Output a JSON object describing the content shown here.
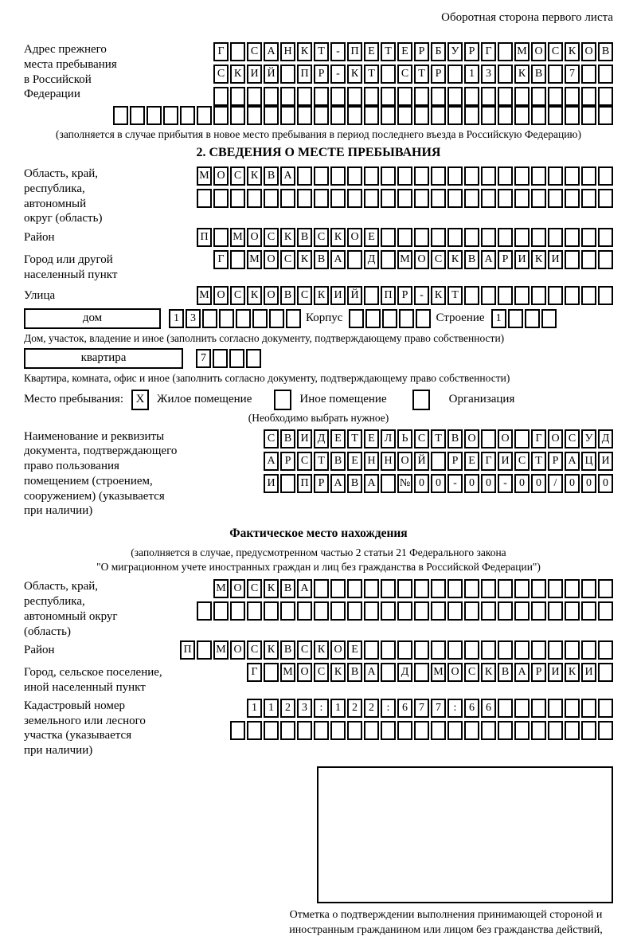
{
  "page": {
    "header_note": "Оборотная сторона первого листа"
  },
  "colors": {
    "ink": "#000000",
    "paper": "#ffffff"
  },
  "prev_address": {
    "label": "Адрес прежнего\nместа пребывания\nв Российской\nФедерации",
    "rows": [
      {
        "cells": "Г САНКТ-ПЕТЕРБУРГ МОСКОВ",
        "count": 24
      },
      {
        "cells": "СКИЙ ПР-КТ СТР 13 КВ 7",
        "count": 24
      },
      {
        "cells": "",
        "count": 24
      }
    ],
    "overflow_row": {
      "cells": "",
      "count": 30
    },
    "note": "(заполняется в случае прибытия в новое место пребывания в период последнего въезда в Российскую Федерацию)"
  },
  "section2": {
    "title": "2. СВЕДЕНИЯ О МЕСТЕ ПРЕБЫВАНИЯ",
    "oblast": {
      "label": "Область, край,\nреспублика,\nавтономный\nокруг (область)",
      "rows": [
        {
          "cells": "МОСКВА",
          "count": 25
        },
        {
          "cells": "",
          "count": 25
        }
      ]
    },
    "raion": {
      "label": "Район",
      "row": {
        "cells": "П МОСКВСКОЕ",
        "count": 25
      }
    },
    "gorod": {
      "label": "Город или другой\nнаселенный пункт",
      "row": {
        "cells": "Г МОСКВА Д МОСКВАРИКИ",
        "count": 24
      }
    },
    "ulitsa": {
      "label": "Улица",
      "row": {
        "cells": "МОСКОВСКИЙ ПР-КТ",
        "count": 25
      }
    },
    "dom": {
      "box_label": "дом",
      "row": {
        "cells": "13",
        "count": 8
      },
      "korpus_label": "Корпус",
      "korpus_row": {
        "cells": "",
        "count": 5
      },
      "stroenie_label": "Строение",
      "stroenie_row": {
        "cells": "1",
        "count": 4
      },
      "note": "Дом, участок, владение и иное (заполнить согласно документу, подтверждающему право собственности)"
    },
    "kvartira": {
      "box_label": "квартира",
      "row": {
        "cells": "7",
        "count": 4
      },
      "note": "Квартира, комната, офис и иное (заполнить согласно документу, подтверждающему право собственности)"
    },
    "mesto": {
      "label": "Место пребывания:",
      "zhiloe_mark": "X",
      "zhiloe_label": "Жилое помещение",
      "inoe_mark": "",
      "inoe_label": "Иное помещение",
      "org_mark": "",
      "org_label": "Организация",
      "note": "(Необходимо выбрать нужное)"
    },
    "doc": {
      "label": "Наименование и реквизиты\nдокумента, подтверждающего\nправо пользования\nпомещением (строением,\nсооружением) (указывается\nпри наличии)",
      "rows": [
        {
          "cells": "СВИДЕТЕЛЬСТВО О ГОСУД",
          "count": 21
        },
        {
          "cells": "АРСТВЕННОЙ РЕГИСТРАЦИ",
          "count": 21
        },
        {
          "cells": "И ПРАВА №00-00-00/000",
          "count": 21
        }
      ]
    }
  },
  "fakt": {
    "title": "Фактическое место нахождения",
    "note_line1": "(заполняется в случае, предусмотренном частью 2 статьи 21 Федерального закона",
    "note_line2": "\"О миграционном учете иностранных граждан и лиц без гражданства в Российской Федерации\")",
    "oblast": {
      "label": "Область, край,\nреспублика,\nавтономный округ\n(область)",
      "rows": [
        {
          "cells": "МОСКВА",
          "count": 24
        },
        {
          "cells": "",
          "count": 25
        }
      ]
    },
    "raion": {
      "label": "Район",
      "row": {
        "cells": "П МОСКВСКОЕ",
        "count": 26
      }
    },
    "gorod": {
      "label": "Город, сельское поселение,\nиной населенный пункт",
      "row": {
        "cells": "Г МОСКВА Д МОСКВАРИКИ",
        "count": 22
      }
    },
    "kadastr": {
      "label": "Кадастровый номер\nземельного или лесного\nучастка (указывается\nпри наличии)",
      "rows": [
        {
          "cells": "1123:122:677:66",
          "count": 22
        },
        {
          "cells": "",
          "count": 23
        }
      ]
    }
  },
  "stamp": {
    "caption": "Отметка о подтверждении выполнения принимающей стороной и иностранным гражданином или лицом без гражданства действий, необходимых для его постановки на учет по месту пребывания"
  }
}
